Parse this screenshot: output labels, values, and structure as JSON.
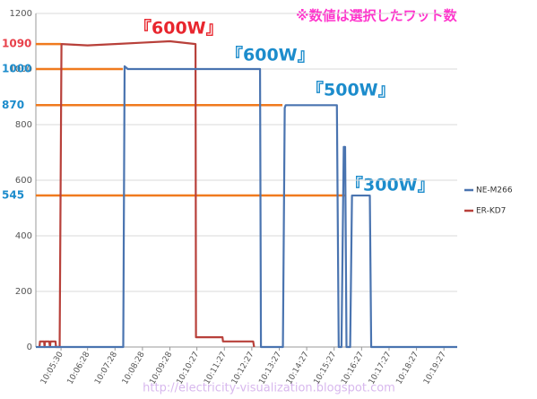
{
  "chart_data": {
    "type": "line",
    "note": "※数値は選択したワット数",
    "annotations": [
      "『600W』",
      "『600W』",
      "『500W』",
      "『300W』"
    ],
    "watermark": "http://electricity-visualization.blogspot.com",
    "xlim": [
      "10:04:35",
      "10:19:56"
    ],
    "xticks": [
      "10:05:30",
      "10:06:28",
      "10:07:28",
      "10:08:28",
      "10:09:28",
      "10:10:27",
      "10:11:27",
      "10:12:27",
      "10:13:27",
      "10:14:27",
      "10:15:27",
      "10:16:27",
      "10:17:27",
      "10:18:27",
      "10:19:27"
    ],
    "ylim": [
      0,
      1200
    ],
    "yticks": [
      0,
      200,
      400,
      600,
      800,
      1000,
      1200
    ],
    "grid": true,
    "reference_lines": [
      {
        "value": 1090,
        "end": "10:05:30",
        "label_color": "#e8404a"
      },
      {
        "value": 1000,
        "end": "10:07:45",
        "label_color": "#1c8ccc"
      },
      {
        "value": 870,
        "end": "10:13:34",
        "label_color": "#1c8ccc"
      },
      {
        "value": 545,
        "end": "10:15:52",
        "label_color": "#1c8ccc"
      }
    ],
    "reference_color": "#f07a1e",
    "series": [
      {
        "name": "NE-M266",
        "color": "#4a74b0",
        "x": [
          "10:04:35",
          "10:07:46",
          "10:07:49",
          "10:07:56",
          "10:12:45",
          "10:12:47",
          "10:13:35",
          "10:13:39",
          "10:13:41",
          "10:15:33",
          "10:15:37",
          "10:15:43",
          "10:15:48",
          "10:15:51",
          "10:15:54",
          "10:16:02",
          "10:16:06",
          "10:16:45",
          "10:16:48",
          "10:19:56"
        ],
        "values": [
          0,
          0,
          1010,
          1000,
          1000,
          0,
          0,
          860,
          870,
          870,
          0,
          0,
          720,
          720,
          0,
          0,
          545,
          545,
          0,
          0
        ]
      },
      {
        "name": "ER-KD7",
        "color": "#b8403a",
        "x": [
          "10:04:43",
          "10:04:44",
          "10:04:53",
          "10:04:54",
          "10:04:55",
          "10:05:04",
          "10:05:06",
          "10:05:07",
          "10:05:18",
          "10:05:19",
          "10:05:27",
          "10:05:31",
          "10:06:28",
          "10:07:28",
          "10:08:28",
          "10:09:28",
          "10:10:24",
          "10:10:25",
          "10:11:23",
          "10:11:24",
          "10:12:30",
          "10:12:32"
        ],
        "values": [
          0,
          20,
          20,
          0,
          20,
          20,
          0,
          20,
          20,
          0,
          0,
          1090,
          1085,
          1090,
          1095,
          1100,
          1090,
          35,
          35,
          20,
          20,
          0
        ]
      }
    ]
  }
}
